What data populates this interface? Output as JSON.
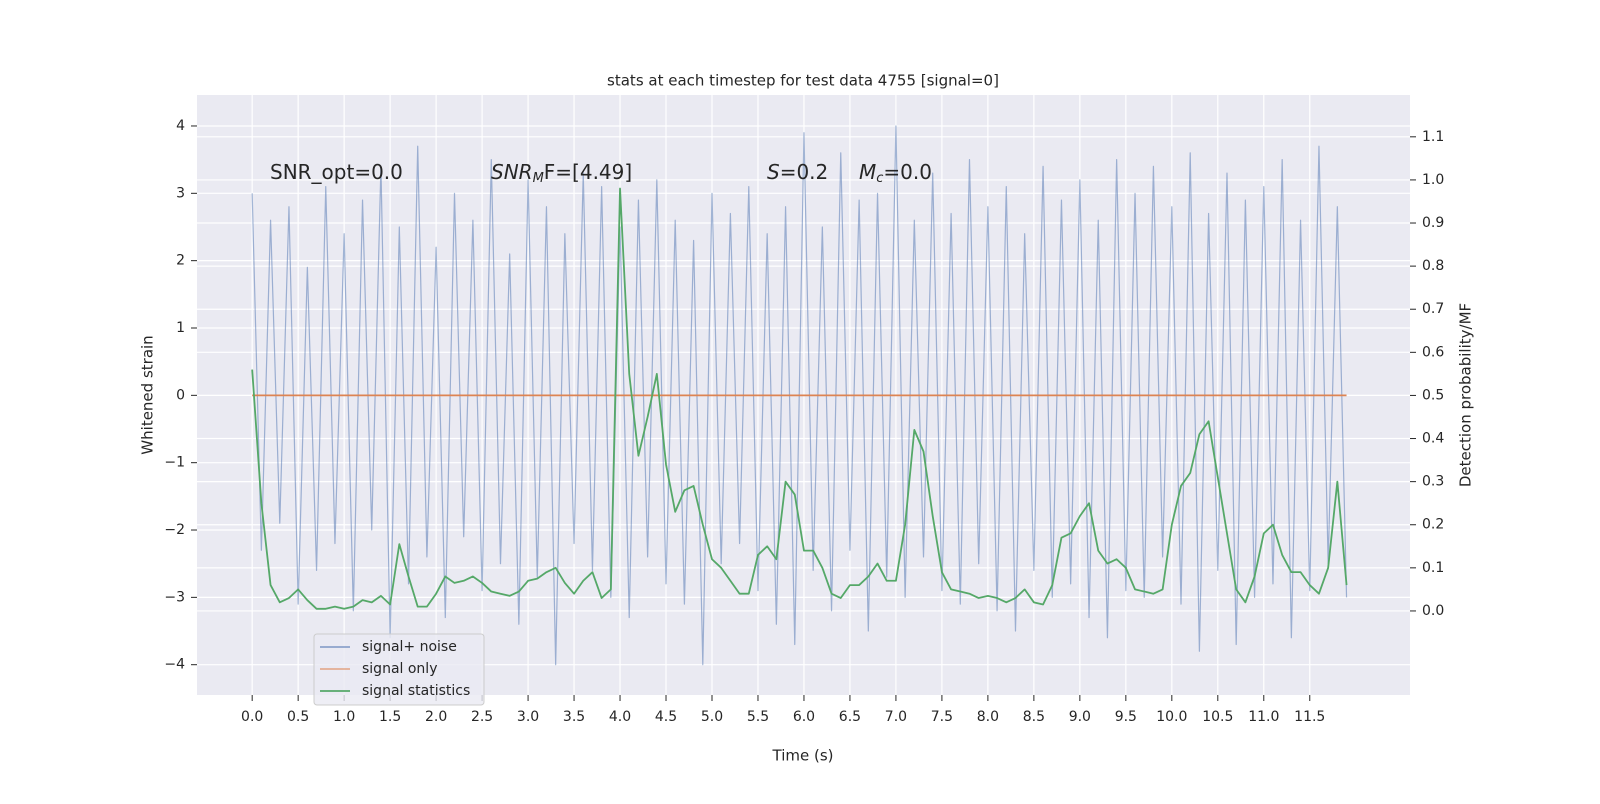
{
  "chart_data": {
    "type": "line",
    "title": "stats at each timestep for test data 4755 [signal=0]",
    "xlabel": "Time (s)",
    "ylabel": "Whitened strain",
    "y2label": "Detection probability/MF",
    "annotations": [
      {
        "rest": "SNR_opt=0.0"
      },
      {
        "main": "SNR",
        "sub": "M",
        "rest": "F=[4.49]"
      },
      {
        "main": "S",
        "rest": "=0.2"
      },
      {
        "main": "M",
        "sub": "c",
        "rest": "=0.0"
      }
    ],
    "x": [
      0,
      0.1,
      0.2,
      0.3,
      0.4,
      0.5,
      0.6,
      0.7,
      0.8,
      0.9,
      1,
      1.1,
      1.2,
      1.3,
      1.4,
      1.5,
      1.6,
      1.7,
      1.8,
      1.9,
      2,
      2.1,
      2.2,
      2.3,
      2.4,
      2.5,
      2.6,
      2.7,
      2.8,
      2.9,
      3,
      3.1,
      3.2,
      3.3,
      3.4,
      3.5,
      3.6,
      3.7,
      3.8,
      3.9,
      4,
      4.1,
      4.2,
      4.3,
      4.4,
      4.5,
      4.6,
      4.7,
      4.8,
      4.9,
      5,
      5.1,
      5.2,
      5.3,
      5.4,
      5.5,
      5.6,
      5.7,
      5.8,
      5.9,
      6,
      6.1,
      6.2,
      6.3,
      6.4,
      6.5,
      6.6,
      6.7,
      6.8,
      6.9,
      7,
      7.1,
      7.2,
      7.3,
      7.4,
      7.5,
      7.6,
      7.7,
      7.8,
      7.9,
      8,
      8.1,
      8.2,
      8.3,
      8.4,
      8.5,
      8.6,
      8.7,
      8.8,
      8.9,
      9,
      9.1,
      9.2,
      9.3,
      9.4,
      9.5,
      9.6,
      9.7,
      9.8,
      9.9,
      10,
      10.1,
      10.2,
      10.3,
      10.4,
      10.5,
      10.6,
      10.7,
      10.8,
      10.9,
      11,
      11.1,
      11.2,
      11.3,
      11.4,
      11.5,
      11.6,
      11.7,
      11.8,
      11.9
    ],
    "series": [
      {
        "name": "signal+ noise",
        "color": "#4c72b0",
        "values": [
          3.0,
          -2.3,
          2.6,
          -1.9,
          2.8,
          -3.1,
          1.9,
          -2.6,
          3.1,
          -2.2,
          2.4,
          -3.2,
          2.9,
          -2.0,
          3.4,
          -3.6,
          2.5,
          -2.8,
          3.7,
          -2.4,
          2.2,
          -3.3,
          3.0,
          -2.1,
          2.6,
          -2.9,
          3.5,
          -2.5,
          2.1,
          -3.4,
          3.2,
          -2.7,
          2.8,
          -4.0,
          2.4,
          -2.2,
          3.3,
          -2.6,
          3.1,
          -3.0,
          2.5,
          -3.3,
          2.9,
          -2.4,
          3.2,
          -2.8,
          2.6,
          -3.1,
          2.3,
          -4.0,
          3.0,
          -2.5,
          2.7,
          -2.2,
          3.1,
          -2.9,
          2.4,
          -3.4,
          2.8,
          -3.7,
          3.9,
          -2.6,
          2.5,
          -3.2,
          3.6,
          -2.3,
          2.9,
          -3.5,
          3.0,
          -2.7,
          4.0,
          -3.0,
          2.6,
          -2.4,
          3.3,
          -2.9,
          2.7,
          -3.1,
          3.5,
          -2.5,
          2.8,
          -3.2,
          3.1,
          -3.5,
          2.4,
          -2.6,
          3.4,
          -3.0,
          2.9,
          -2.8,
          3.2,
          -3.3,
          2.6,
          -3.6,
          3.5,
          -2.9,
          3.0,
          -3.0,
          3.4,
          -2.4,
          2.8,
          -3.1,
          3.6,
          -3.8,
          2.7,
          -2.6,
          3.3,
          -3.7,
          2.9,
          -3.0,
          3.1,
          -2.8,
          3.5,
          -3.6,
          2.6,
          -2.9,
          3.7,
          -2.5,
          2.8,
          -3.0
        ]
      },
      {
        "name": "signal only",
        "color": "#dd8452",
        "values": [
          0,
          0,
          0,
          0,
          0,
          0,
          0,
          0,
          0,
          0,
          0,
          0,
          0,
          0,
          0,
          0,
          0,
          0,
          0,
          0,
          0,
          0,
          0,
          0,
          0,
          0,
          0,
          0,
          0,
          0,
          0,
          0,
          0,
          0,
          0,
          0,
          0,
          0,
          0,
          0,
          0,
          0,
          0,
          0,
          0,
          0,
          0,
          0,
          0,
          0,
          0,
          0,
          0,
          0,
          0,
          0,
          0,
          0,
          0,
          0,
          0,
          0,
          0,
          0,
          0,
          0,
          0,
          0,
          0,
          0,
          0,
          0,
          0,
          0,
          0,
          0,
          0,
          0,
          0,
          0,
          0,
          0,
          0,
          0,
          0,
          0,
          0,
          0,
          0,
          0,
          0,
          0,
          0,
          0,
          0,
          0,
          0,
          0,
          0,
          0,
          0,
          0,
          0,
          0,
          0,
          0,
          0,
          0,
          0,
          0,
          0,
          0,
          0,
          0,
          0,
          0,
          0,
          0,
          0,
          0
        ]
      },
      {
        "name": "signal statistics",
        "color": "#55a868",
        "axis": "y2",
        "values": [
          0.56,
          0.25,
          0.06,
          0.02,
          0.03,
          0.05,
          0.025,
          0.005,
          0.005,
          0.01,
          0.005,
          0.01,
          0.025,
          0.02,
          0.035,
          0.015,
          0.155,
          0.08,
          0.01,
          0.01,
          0.04,
          0.08,
          0.065,
          0.07,
          0.08,
          0.065,
          0.045,
          0.04,
          0.035,
          0.045,
          0.07,
          0.075,
          0.09,
          0.1,
          0.065,
          0.04,
          0.07,
          0.09,
          0.03,
          0.05,
          0.98,
          0.55,
          0.36,
          0.45,
          0.55,
          0.34,
          0.23,
          0.28,
          0.29,
          0.2,
          0.12,
          0.1,
          0.07,
          0.04,
          0.04,
          0.13,
          0.15,
          0.12,
          0.3,
          0.27,
          0.14,
          0.14,
          0.1,
          0.04,
          0.03,
          0.06,
          0.06,
          0.08,
          0.11,
          0.07,
          0.07,
          0.2,
          0.42,
          0.37,
          0.22,
          0.09,
          0.05,
          0.045,
          0.04,
          0.03,
          0.035,
          0.03,
          0.02,
          0.03,
          0.05,
          0.02,
          0.015,
          0.06,
          0.17,
          0.18,
          0.22,
          0.25,
          0.14,
          0.11,
          0.12,
          0.1,
          0.05,
          0.045,
          0.04,
          0.05,
          0.2,
          0.29,
          0.32,
          0.41,
          0.44,
          0.31,
          0.18,
          0.05,
          0.02,
          0.08,
          0.18,
          0.2,
          0.13,
          0.09,
          0.09,
          0.06,
          0.04,
          0.1,
          0.3,
          0.06
        ]
      }
    ],
    "xlim": [
      -0.6,
      12.59
    ],
    "ylim": [
      -4.45,
      4.46
    ],
    "y2lim": [
      -0.195,
      1.197
    ],
    "xticks": [
      {
        "value": 0,
        "label": "0.0"
      },
      {
        "value": 0.5,
        "label": "0.5"
      },
      {
        "value": 1,
        "label": "1.0"
      },
      {
        "value": 1.5,
        "label": "1.5"
      },
      {
        "value": 2,
        "label": "2.0"
      },
      {
        "value": 2.5,
        "label": "2.5"
      },
      {
        "value": 3,
        "label": "3.0"
      },
      {
        "value": 3.5,
        "label": "3.5"
      },
      {
        "value": 4,
        "label": "4.0"
      },
      {
        "value": 4.5,
        "label": "4.5"
      },
      {
        "value": 5,
        "label": "5.0"
      },
      {
        "value": 5.5,
        "label": "5.5"
      },
      {
        "value": 6,
        "label": "6.0"
      },
      {
        "value": 6.5,
        "label": "6.5"
      },
      {
        "value": 7,
        "label": "7.0"
      },
      {
        "value": 7.5,
        "label": "7.5"
      },
      {
        "value": 8,
        "label": "8.0"
      },
      {
        "value": 8.5,
        "label": "8.5"
      },
      {
        "value": 9,
        "label": "9.0"
      },
      {
        "value": 9.5,
        "label": "9.5"
      },
      {
        "value": 10,
        "label": "10.0"
      },
      {
        "value": 10.5,
        "label": "10.5"
      },
      {
        "value": 11,
        "label": "11.0"
      },
      {
        "value": 11.5,
        "label": "11.5"
      }
    ],
    "yticks": [
      {
        "value": -4,
        "label": "−4"
      },
      {
        "value": -3,
        "label": "−3"
      },
      {
        "value": -2,
        "label": "−2"
      },
      {
        "value": -1,
        "label": "−1"
      },
      0,
      1,
      2,
      3,
      4
    ],
    "y2ticks": [
      {
        "value": 0,
        "label": "0.0"
      },
      0.1,
      0.2,
      0.3,
      0.4,
      0.5,
      0.6,
      0.7,
      0.8,
      0.9,
      {
        "value": 1,
        "label": "1.0"
      },
      1.1
    ],
    "grid": true,
    "legend": "lower left"
  }
}
